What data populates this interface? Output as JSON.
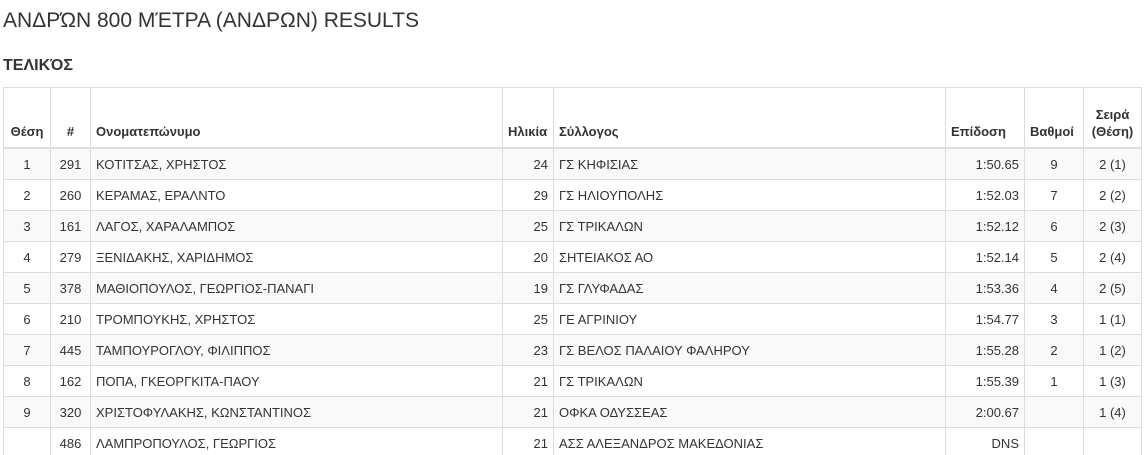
{
  "page": {
    "title": "ΑΝΔΡΏΝ 800 ΜΈΤΡΑ (ΑΝΔΡΩΝ) RESULTS",
    "subtitle": "ΤΕΛΙΚΌΣ"
  },
  "table": {
    "headers": {
      "place": "Θέση",
      "bib": "#",
      "name": "Ονοματεπώνυμο",
      "age": "Ηλικία",
      "club": "Σύλλογος",
      "performance": "Επίδοση",
      "points": "Βαθμοί",
      "heat_line1": "Σειρά",
      "heat_line2": "(Θέση)"
    },
    "rows": [
      {
        "place": "1",
        "bib": "291",
        "name": "ΚΟΤΙΤΣΑΣ, ΧΡΗΣΤΟΣ",
        "age": "24",
        "club": "ΓΣ ΚΗΦΙΣΙΑΣ",
        "performance": "1:50.65",
        "points": "9",
        "heat": "2 (1)"
      },
      {
        "place": "2",
        "bib": "260",
        "name": "ΚΕΡΑΜΑΣ, ΕΡΑΛΝΤΟ",
        "age": "29",
        "club": "ΓΣ ΗΛΙΟΥΠΟΛΗΣ",
        "performance": "1:52.03",
        "points": "7",
        "heat": "2 (2)"
      },
      {
        "place": "3",
        "bib": "161",
        "name": "ΛΑΓΟΣ, ΧΑΡΑΛΑΜΠΟΣ",
        "age": "25",
        "club": "ΓΣ ΤΡΙΚΑΛΩΝ",
        "performance": "1:52.12",
        "points": "6",
        "heat": "2 (3)"
      },
      {
        "place": "4",
        "bib": "279",
        "name": "ΞΕΝΙΔΑΚΗΣ, ΧΑΡΙΔΗΜΟΣ",
        "age": "20",
        "club": "ΣΗΤΕΙΑΚΟΣ ΑΟ",
        "performance": "1:52.14",
        "points": "5",
        "heat": "2 (4)"
      },
      {
        "place": "5",
        "bib": "378",
        "name": "ΜΑΘΙΟΠΟΥΛΟΣ, ΓΕΩΡΓΙΟΣ-ΠΑΝΑΓΙ",
        "age": "19",
        "club": "ΓΣ ΓΛΥΦΑΔΑΣ",
        "performance": "1:53.36",
        "points": "4",
        "heat": "2 (5)"
      },
      {
        "place": "6",
        "bib": "210",
        "name": "ΤΡΟΜΠΟΥΚΗΣ, ΧΡΗΣΤΟΣ",
        "age": "25",
        "club": "ΓΕ ΑΓΡΙΝΙΟΥ",
        "performance": "1:54.77",
        "points": "3",
        "heat": "1 (1)"
      },
      {
        "place": "7",
        "bib": "445",
        "name": "ΤΑΜΠΟΥΡΟΓΛΟΥ, ΦΙΛΙΠΠΟΣ",
        "age": "23",
        "club": "ΓΣ ΒΕΛΟΣ ΠΑΛΑΙΟΥ ΦΑΛΗΡΟΥ",
        "performance": "1:55.28",
        "points": "2",
        "heat": "1 (2)"
      },
      {
        "place": "8",
        "bib": "162",
        "name": "ΠΟΠΑ, ΓΚΕΟΡΓΚΙΤΑ-ΠΑΟΥ",
        "age": "21",
        "club": "ΓΣ ΤΡΙΚΑΛΩΝ",
        "performance": "1:55.39",
        "points": "1",
        "heat": "1 (3)"
      },
      {
        "place": "9",
        "bib": "320",
        "name": "ΧΡΙΣΤΟΦΥΛΑΚΗΣ, ΚΩΝΣΤΑΝΤΙΝΟΣ",
        "age": "21",
        "club": "ΟΦΚΑ ΟΔΥΣΣΕΑΣ",
        "performance": "2:00.67",
        "points": "",
        "heat": "1 (4)"
      },
      {
        "place": "",
        "bib": "486",
        "name": "ΛΑΜΠΡΟΠΟΥΛΟΣ, ΓΕΩΡΓΙΟΣ",
        "age": "21",
        "club": "ΑΣΣ ΑΛΕΞΑΝΔΡΟΣ ΜΑΚΕΔΟΝΙΑΣ",
        "performance": "DNS",
        "points": "",
        "heat": ""
      }
    ]
  }
}
